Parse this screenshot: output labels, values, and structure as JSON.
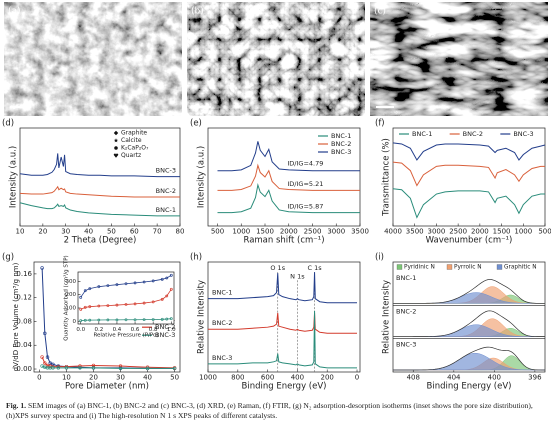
{
  "images": [
    {
      "label": "(a)"
    },
    {
      "label": "(b)"
    },
    {
      "label": "(c)"
    }
  ],
  "chart_data": [
    {
      "type": "line",
      "label": "(d)",
      "xlabel": "2 Theta (Degree)",
      "ylabel": "Intensity (a.u.)",
      "x": [
        10,
        15,
        20,
        22,
        24,
        25,
        26,
        26.5,
        27,
        28,
        29,
        29.5,
        30,
        32,
        35,
        40,
        45,
        50,
        60,
        70,
        80
      ],
      "series": [
        {
          "name": "BNC-1",
          "color": "#2a8c7a",
          "values": [
            32,
            28,
            25,
            24,
            24,
            25,
            28,
            30,
            27,
            28,
            27,
            29,
            25,
            22,
            20,
            18,
            17,
            16,
            15,
            14,
            14
          ]
        },
        {
          "name": "BNC-2",
          "color": "#d9603b",
          "values": [
            45,
            44,
            44,
            45,
            46,
            48,
            52,
            54,
            50,
            52,
            50,
            51,
            47,
            45,
            44,
            43,
            42,
            41,
            40,
            40,
            40
          ]
        },
        {
          "name": "BNC-3",
          "color": "#233e8b",
          "values": [
            72,
            70,
            70,
            71,
            74,
            78,
            85,
            100,
            80,
            95,
            82,
            98,
            75,
            72,
            71,
            70,
            70,
            69,
            69,
            68,
            68
          ]
        }
      ],
      "xlim": [
        10,
        80
      ],
      "xticks": [
        10,
        20,
        30,
        40,
        50,
        60,
        70,
        80
      ],
      "ylim": [
        0,
        135
      ],
      "series_labels": "right",
      "phases": [
        {
          "name": "Graphite",
          "marker": "diamond"
        },
        {
          "name": "Calcite",
          "marker": "star"
        },
        {
          "name": "K₂CaP₂O₇",
          "marker": "circle"
        },
        {
          "name": "Quartz",
          "marker": "heart"
        }
      ]
    },
    {
      "type": "line",
      "label": "(e)",
      "xlabel": "Raman shift (cm⁻¹)",
      "ylabel": "Intensity (a.u.)",
      "x": [
        500,
        800,
        1000,
        1200,
        1300,
        1350,
        1400,
        1500,
        1580,
        1650,
        1800,
        2000,
        2500,
        3000,
        3500
      ],
      "series": [
        {
          "name": "BNC-1",
          "color": "#2a8c7a",
          "values": [
            15,
            15,
            16,
            20,
            32,
            46,
            38,
            33,
            40,
            28,
            18,
            16,
            15,
            15,
            15
          ]
        },
        {
          "name": "BNC-2",
          "color": "#d9603b",
          "values": [
            40,
            40,
            41,
            45,
            56,
            68,
            60,
            55,
            62,
            50,
            42,
            41,
            40,
            40,
            40
          ]
        },
        {
          "name": "BNC-3",
          "color": "#233e8b",
          "values": [
            62,
            62,
            63,
            68,
            82,
            95,
            85,
            78,
            86,
            72,
            64,
            63,
            62,
            62,
            62
          ]
        }
      ],
      "xlim": [
        300,
        3500
      ],
      "xticks": [
        500,
        1000,
        1500,
        2000,
        2500,
        3000,
        3500
      ],
      "ylim": [
        0,
        110
      ],
      "legend": "upper right",
      "annotations": [
        {
          "text": "ID/IG=4.79",
          "x": 2350,
          "y": 70
        },
        {
          "text": "ID/IG=5.21",
          "x": 2350,
          "y": 47
        },
        {
          "text": "ID/IG=5.87",
          "x": 2350,
          "y": 22
        }
      ]
    },
    {
      "type": "line",
      "label": "(f)",
      "xlabel": "Wavenumber (cm⁻¹)",
      "ylabel": "Transmittance (%)",
      "x": [
        4000,
        3800,
        3600,
        3450,
        3300,
        3000,
        2800,
        2500,
        2000,
        1800,
        1650,
        1600,
        1400,
        1200,
        1100,
        1000,
        800,
        600,
        500
      ],
      "series": [
        {
          "name": "BNC-1",
          "color": "#2a8c7a",
          "values": [
            45,
            44,
            36,
            18,
            30,
            40,
            42,
            43,
            43,
            42,
            32,
            36,
            38,
            30,
            22,
            30,
            38,
            40,
            40
          ]
        },
        {
          "name": "BNC-2",
          "color": "#d9603b",
          "values": [
            70,
            69,
            62,
            48,
            58,
            66,
            67,
            67,
            66,
            65,
            55,
            60,
            63,
            58,
            52,
            58,
            64,
            66,
            66
          ]
        },
        {
          "name": "BNC-3",
          "color": "#233e8b",
          "values": [
            88,
            87,
            83,
            72,
            80,
            86,
            87,
            87,
            86,
            85,
            79,
            81,
            83,
            79,
            72,
            77,
            83,
            85,
            86
          ]
        }
      ],
      "xlim": [
        4000,
        500
      ],
      "xticks": [
        4000,
        3500,
        3000,
        2500,
        2000,
        1500,
        1000,
        500
      ],
      "ylim": [
        10,
        102
      ],
      "legend": "top"
    },
    {
      "type": "line",
      "label": "(g)",
      "xlabel": "Pore Diameter (nm)",
      "ylabel": "dV/dD Pore Volume (cm³/g nm)",
      "markers": true,
      "x": [
        1,
        2,
        3,
        4,
        5,
        7,
        10,
        15,
        20,
        30,
        40,
        50
      ],
      "series": [
        {
          "name": "BNC-1",
          "color": "#233e8b",
          "values": [
            0.17,
            0.06,
            0.02,
            0.01,
            0.008,
            0.005,
            0.004,
            0.003,
            0.002,
            0.002,
            0.001,
            0.001
          ]
        },
        {
          "name": "BNC-2",
          "color": "#d33a2c",
          "values": [
            0.02,
            0.01,
            0.006,
            0.005,
            0.004,
            0.004,
            0.004,
            0.005,
            0.006,
            0.005,
            0.003,
            0.002
          ]
        },
        {
          "name": "BNC-3",
          "color": "#2a8c7a",
          "values": [
            0.005,
            0.003,
            0.002,
            0.002,
            0.002,
            0.002,
            0.002,
            0.002,
            0.002,
            0.001,
            0.001,
            0.001
          ]
        }
      ],
      "xlim": [
        -2,
        52
      ],
      "xticks": [
        0,
        10,
        20,
        30,
        40,
        50
      ],
      "ylim": [
        -0.005,
        0.18
      ],
      "yticks": [
        {
          "value": 0,
          "label": "0.00"
        },
        {
          "value": 0.04,
          "label": "0.04"
        },
        {
          "value": 0.08,
          "label": "0.08"
        },
        {
          "value": 0.12,
          "label": "0.12"
        },
        {
          "value": 0.16,
          "label": "0.16"
        }
      ],
      "legend": "center right"
    },
    {
      "type": "line",
      "xlabel": "Relative Pressure (P/Po)",
      "ylabel": "Quantity Adsorbed (cm³/g STP)",
      "markers": true,
      "x": [
        0,
        0.05,
        0.1,
        0.2,
        0.3,
        0.4,
        0.5,
        0.6,
        0.7,
        0.8,
        0.9,
        0.95,
        1.0
      ],
      "series": [
        {
          "name": "BNC-1",
          "color": "#233e8b",
          "values": [
            180,
            230,
            245,
            260,
            268,
            275,
            282,
            288,
            295,
            303,
            315,
            325,
            345
          ]
        },
        {
          "name": "BNC-2",
          "color": "#d33a2c",
          "values": [
            90,
            105,
            110,
            115,
            118,
            122,
            126,
            131,
            137,
            146,
            165,
            190,
            240
          ]
        },
        {
          "name": "BNC-3",
          "color": "#2a8c7a",
          "values": [
            5,
            8,
            9,
            10,
            11,
            11,
            12,
            12,
            13,
            14,
            15,
            17,
            20
          ]
        }
      ],
      "xlim": [
        -0.03,
        1.03
      ],
      "xticks": [
        {
          "value": 0,
          "label": "0.0"
        },
        0.2,
        0.4,
        0.6,
        0.8,
        {
          "value": 1,
          "label": "1.0"
        }
      ],
      "ylim": [
        -20,
        370
      ],
      "yticks": [
        0,
        100,
        200,
        300
      ]
    },
    {
      "type": "line",
      "label": "(h)",
      "xlabel": "Binding Energy (eV)",
      "ylabel": "Relative Intensity",
      "x": [
        1000,
        900,
        800,
        700,
        600,
        560,
        540,
        532,
        525,
        500,
        450,
        410,
        400,
        390,
        350,
        300,
        290,
        285,
        280,
        250,
        200,
        100,
        0
      ],
      "series": [
        {
          "name": "BNC-1",
          "color": "#233e8b",
          "values": [
            72,
            72,
            72,
            73,
            74,
            75,
            78,
            97,
            76,
            74,
            72,
            71,
            72,
            71,
            70,
            71,
            74,
            98,
            72,
            69,
            68,
            68,
            68
          ]
        },
        {
          "name": "BNC-2",
          "color": "#d33a2c",
          "values": [
            42,
            42,
            42,
            43,
            44,
            45,
            47,
            58,
            45,
            44,
            42,
            41,
            42,
            41,
            40,
            41,
            44,
            58,
            42,
            39,
            38,
            38,
            38
          ]
        },
        {
          "name": "BNC-3",
          "color": "#2a8c7a",
          "values": [
            8,
            8,
            8,
            9,
            9,
            10,
            11,
            18,
            10,
            9,
            8,
            7,
            8,
            7,
            6,
            7,
            10,
            60,
            8,
            5,
            4,
            4,
            4
          ]
        }
      ],
      "xlim": [
        1000,
        -20
      ],
      "xticks": [
        1000,
        800,
        600,
        400,
        200,
        0
      ],
      "ylim": [
        0,
        108
      ],
      "series_labels": "left",
      "annotations": [
        {
          "text": "O 1s",
          "x": 532,
          "y": 102,
          "line": true
        },
        {
          "text": "N 1s",
          "x": 400,
          "y": 94,
          "line": true
        },
        {
          "text": "C 1s",
          "x": 285,
          "y": 102,
          "line": true
        }
      ]
    },
    {
      "type": "peak-fit",
      "label": "(i)",
      "xlabel": "Binding Energy (eV)",
      "ylabel": "Relative Intensity",
      "xlim": [
        410,
        395
      ],
      "xticks": [
        408,
        404,
        400,
        396
      ],
      "samples": [
        "BNC-1",
        "BNC-2",
        "BNC-3"
      ],
      "components": [
        {
          "name": "Pyridinic N",
          "color": "#7cc576",
          "centers": [
            398.4,
            398.4,
            398.3
          ],
          "heights": [
            0.35,
            0.35,
            0.6
          ],
          "widths": [
            0.8,
            0.8,
            0.8
          ]
        },
        {
          "name": "Pyrrolic N",
          "color": "#f0a070",
          "centers": [
            400.2,
            400.2,
            400.1
          ],
          "heights": [
            0.7,
            0.75,
            0.5
          ],
          "widths": [
            1.1,
            1.1,
            1.0
          ]
        },
        {
          "name": "Graphitic N",
          "color": "#6f8fd0",
          "centers": [
            401.8,
            401.8,
            401.9
          ],
          "heights": [
            0.45,
            0.5,
            0.7
          ],
          "widths": [
            1.5,
            1.5,
            1.6
          ]
        }
      ]
    }
  ],
  "caption": {
    "label": "Fig. 1.",
    "text": "SEM images of (a) BNC-1, (b) BNC-2 and (c) BNC-3, (d) XRD, (e) Raman, (f) FTIR, (g) N₂ adsorption-desorption isotherms (inset shows the pore size distribution), (h)XPS survey spectra and (i) The high-resolution N 1 s XPS peaks of different catalysts."
  }
}
